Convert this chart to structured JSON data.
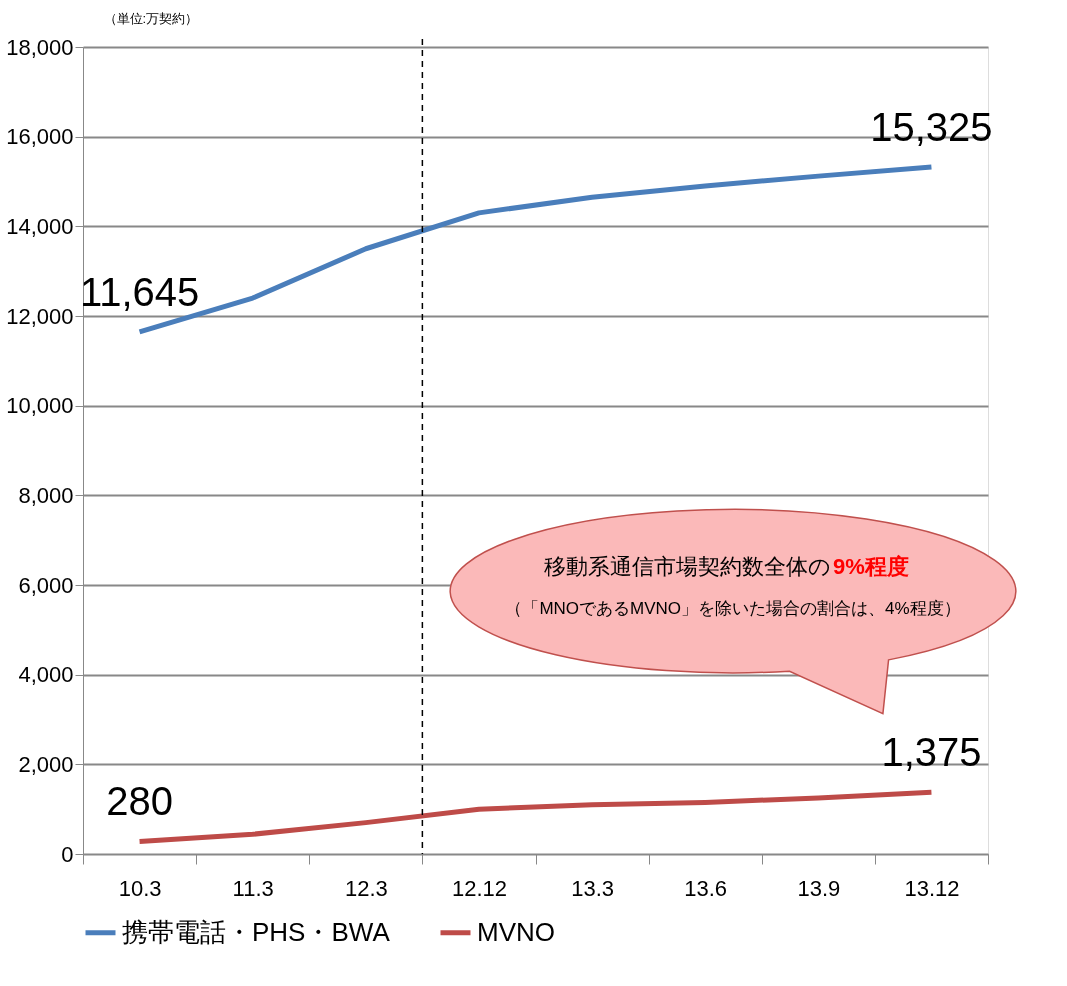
{
  "chart_data": {
    "type": "line",
    "ylabel": "（単位:万契約）",
    "categories": [
      "10.3",
      "11.3",
      "12.3",
      "12.12",
      "13.3",
      "13.6",
      "13.9",
      "13.12"
    ],
    "series": [
      {
        "name": "携帯電話・PHS・BWA",
        "color": "#4a7ebb",
        "values": [
          11645,
          12400,
          13500,
          14300,
          14650,
          14900,
          15120,
          15325
        ],
        "value_labels": [
          "11,645",
          null,
          null,
          null,
          null,
          null,
          null,
          "15,325"
        ]
      },
      {
        "name": "MVNO",
        "color": "#be4b48",
        "values": [
          280,
          440,
          700,
          1000,
          1100,
          1150,
          1250,
          1375
        ],
        "value_labels": [
          "280",
          null,
          null,
          null,
          null,
          null,
          null,
          "1,375"
        ]
      }
    ],
    "ylim": [
      0,
      18000
    ],
    "yticks": [
      0,
      {
        "value": 2000,
        "label": "2,000"
      },
      {
        "value": 4000,
        "label": "4,000"
      },
      {
        "value": 6000,
        "label": "6,000"
      },
      {
        "value": 8000,
        "label": "8,000"
      },
      {
        "value": 10000,
        "label": "10,000"
      },
      {
        "value": 12000,
        "label": "12,000"
      },
      {
        "value": 14000,
        "label": "14,000"
      },
      {
        "value": 16000,
        "label": "16,000"
      },
      {
        "value": 18000,
        "label": "18,000"
      }
    ],
    "grid": "y",
    "legend": "bottom",
    "line_style": "solid",
    "ref_lines": [
      {
        "axis": "x",
        "value": "12.12",
        "line_style": "dashed",
        "color": "#000000"
      }
    ],
    "annotations": [
      "移動系通信市場契約数全体の",
      "9%程度",
      "（「MNOであるMVNO」を除いた場合の割合は、4%程度）"
    ]
  }
}
